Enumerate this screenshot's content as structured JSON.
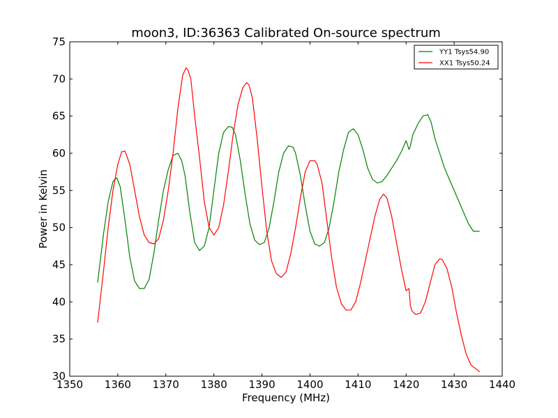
{
  "chart_data": {
    "type": "line",
    "title": "moon3, ID:36363 Calibrated On-source spectrum",
    "xlabel": "Frequency (MHz)",
    "ylabel": "Power in Kelvin",
    "xlim": [
      1350,
      1440
    ],
    "ylim": [
      30,
      75
    ],
    "xticks": [
      "1350",
      "1360",
      "1370",
      "1380",
      "1390",
      "1400",
      "1410",
      "1420",
      "1430",
      "1440"
    ],
    "yticks": [
      "30",
      "35",
      "40",
      "45",
      "50",
      "55",
      "60",
      "65",
      "70",
      "75"
    ],
    "grid": false,
    "legend_position": "top-right",
    "series": [
      {
        "name": "YY1 Tsys54.90",
        "color": "#008000",
        "x": [
          1355.8,
          1357.0,
          1358.0,
          1359.0,
          1359.8,
          1360.5,
          1361.5,
          1362.5,
          1363.5,
          1364.5,
          1365.5,
          1366.5,
          1367.5,
          1368.5,
          1369.5,
          1370.5,
          1371.5,
          1372.5,
          1373.3,
          1374.0,
          1375.0,
          1376.0,
          1377.0,
          1378.0,
          1379.0,
          1380.0,
          1381.0,
          1382.0,
          1383.0,
          1383.8,
          1384.5,
          1385.5,
          1386.5,
          1387.5,
          1388.5,
          1389.5,
          1390.5,
          1391.5,
          1392.5,
          1393.5,
          1394.5,
          1395.5,
          1396.5,
          1397.0,
          1398.0,
          1399.0,
          1400.0,
          1401.0,
          1402.0,
          1403.0,
          1404.0,
          1405.0,
          1406.0,
          1407.0,
          1408.0,
          1409.0,
          1410.0,
          1411.0,
          1412.0,
          1413.0,
          1414.0,
          1415.0,
          1416.0,
          1417.0,
          1418.0,
          1419.0,
          1420.0,
          1420.6,
          1420.9,
          1421.4,
          1422.5,
          1423.5,
          1424.5,
          1425.2,
          1426.0,
          1427.0,
          1428.0,
          1429.0,
          1430.0,
          1431.0,
          1432.0,
          1433.0,
          1434.0,
          1435.3
        ],
        "y": [
          42.6,
          49.0,
          53.5,
          56.2,
          56.7,
          55.5,
          51.0,
          46.0,
          42.8,
          41.8,
          41.8,
          43.0,
          46.5,
          51.0,
          55.0,
          57.8,
          59.7,
          60.0,
          59.0,
          57.0,
          52.0,
          48.0,
          46.9,
          47.5,
          50.0,
          55.0,
          60.0,
          62.8,
          63.6,
          63.5,
          62.5,
          59.0,
          54.5,
          50.5,
          48.3,
          47.7,
          48.0,
          50.0,
          53.5,
          57.5,
          60.0,
          61.0,
          60.8,
          60.0,
          57.0,
          53.0,
          49.5,
          47.8,
          47.5,
          48.0,
          50.0,
          53.5,
          57.5,
          60.5,
          62.8,
          63.3,
          62.5,
          60.5,
          58.0,
          56.5,
          56.0,
          56.2,
          57.0,
          58.0,
          59.0,
          60.2,
          61.7,
          60.5,
          61.0,
          62.5,
          64.0,
          65.0,
          65.2,
          64.2,
          62.0,
          60.0,
          58.0,
          56.5,
          55.0,
          53.5,
          52.0,
          50.5,
          49.5,
          49.5
        ]
      },
      {
        "name": "XX1 Tsys50.24",
        "color": "#ff0000",
        "x": [
          1355.8,
          1357.0,
          1358.0,
          1359.0,
          1360.0,
          1360.8,
          1361.5,
          1362.5,
          1363.5,
          1364.5,
          1365.5,
          1366.5,
          1367.5,
          1368.5,
          1369.5,
          1370.5,
          1371.5,
          1372.5,
          1373.5,
          1374.2,
          1374.6,
          1375.2,
          1376.0,
          1377.0,
          1378.0,
          1379.0,
          1380.0,
          1381.0,
          1382.0,
          1383.0,
          1384.0,
          1385.0,
          1386.0,
          1386.8,
          1387.3,
          1388.0,
          1389.0,
          1390.0,
          1391.0,
          1392.0,
          1393.0,
          1394.0,
          1395.0,
          1396.0,
          1397.0,
          1398.0,
          1399.0,
          1400.0,
          1401.0,
          1401.5,
          1402.5,
          1403.5,
          1404.5,
          1405.5,
          1406.5,
          1407.5,
          1408.5,
          1409.5,
          1410.5,
          1411.5,
          1412.5,
          1413.5,
          1414.5,
          1415.3,
          1416.0,
          1417.0,
          1418.0,
          1419.0,
          1420.0,
          1420.6,
          1420.9,
          1421.2,
          1422.0,
          1423.0,
          1424.0,
          1425.0,
          1426.0,
          1427.0,
          1427.5,
          1428.5,
          1429.5,
          1430.5,
          1431.5,
          1432.5,
          1433.5,
          1434.5,
          1435.3
        ],
        "y": [
          37.2,
          44.0,
          50.0,
          55.0,
          58.5,
          60.2,
          60.3,
          58.5,
          55.0,
          51.5,
          49.0,
          48.0,
          47.8,
          48.5,
          51.0,
          55.0,
          60.0,
          66.0,
          70.5,
          71.5,
          71.2,
          70.0,
          65.0,
          59.5,
          53.5,
          50.0,
          49.0,
          50.0,
          53.0,
          57.5,
          62.5,
          66.5,
          68.8,
          69.5,
          69.2,
          67.5,
          62.0,
          55.5,
          49.5,
          45.5,
          43.8,
          43.3,
          44.0,
          46.5,
          50.0,
          54.0,
          57.5,
          59.0,
          59.0,
          58.5,
          56.0,
          51.0,
          46.0,
          42.0,
          39.8,
          38.9,
          38.9,
          40.0,
          42.5,
          45.5,
          48.5,
          51.5,
          53.8,
          54.5,
          54.0,
          51.5,
          48.0,
          44.5,
          41.5,
          41.8,
          39.5,
          38.8,
          38.3,
          38.5,
          40.0,
          42.5,
          45.0,
          45.8,
          45.7,
          44.5,
          42.0,
          38.5,
          35.5,
          33.0,
          31.5,
          31.0,
          30.6
        ]
      }
    ]
  }
}
